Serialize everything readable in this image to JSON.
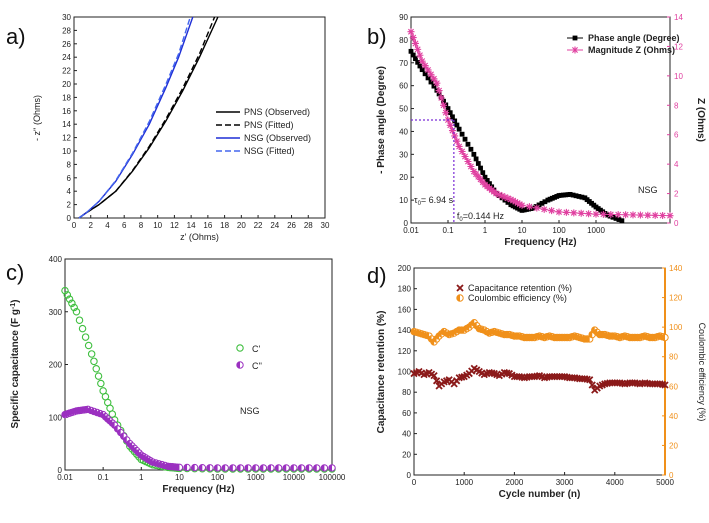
{
  "panels": {
    "a": "a)",
    "b": "b)",
    "c": "c)",
    "d": "d)"
  },
  "chart_data": [
    {
      "id": "a",
      "type": "line",
      "title": "",
      "xlabel": "z' (Ohms)",
      "ylabel": "- z'' (Ohms)",
      "xlim": [
        0,
        30
      ],
      "ylim": [
        0,
        30
      ],
      "xticks": [
        0,
        2,
        4,
        6,
        8,
        10,
        12,
        14,
        16,
        18,
        20,
        22,
        24,
        26,
        28,
        30
      ],
      "yticks": [
        0,
        2,
        4,
        6,
        8,
        10,
        12,
        14,
        16,
        18,
        20,
        22,
        24,
        26,
        28,
        30
      ],
      "legend_position": "center-right",
      "series": [
        {
          "name": "PNS (Observed)",
          "color": "#000000",
          "style": "solid",
          "x": [
            0.6,
            1.5,
            3,
            5,
            7,
            9,
            11,
            13,
            15,
            17.2
          ],
          "y": [
            0,
            0.8,
            2,
            4,
            7,
            10.5,
            14.5,
            19,
            24,
            30
          ]
        },
        {
          "name": "PNS (Fitted)",
          "color": "#000000",
          "style": "dashed",
          "x": [
            0.6,
            1.5,
            3,
            5,
            7,
            9,
            11,
            13,
            15,
            16.8
          ],
          "y": [
            0,
            0.8,
            2,
            4,
            7.1,
            10.7,
            14.8,
            19.4,
            24.5,
            30
          ]
        },
        {
          "name": "NSG (Observed)",
          "color": "#1f2fd6",
          "style": "solid",
          "x": [
            0.6,
            1.5,
            3,
            5,
            7,
            9,
            11,
            12.5,
            14.2
          ],
          "y": [
            0,
            0.8,
            2.5,
            5.5,
            9.5,
            14,
            19.5,
            24,
            30
          ]
        },
        {
          "name": "NSG (Fitted)",
          "color": "#4466ee",
          "style": "dashed",
          "x": [
            0.6,
            1.5,
            3,
            5,
            7,
            9,
            11,
            12.5,
            13.9
          ],
          "y": [
            0,
            0.8,
            2.5,
            5.6,
            9.7,
            14.4,
            20,
            24.5,
            30
          ]
        }
      ]
    },
    {
      "id": "b",
      "type": "line",
      "title": "",
      "xlabel": "Frequency (Hz)",
      "ylabel": "- Phase angle (Degree)",
      "y2label": "Z (Ohms)",
      "xscale": "log",
      "xlim": [
        0.01,
        100000
      ],
      "ylim": [
        0,
        90
      ],
      "y2lim": [
        0,
        14
      ],
      "xticks": [
        0.01,
        0.1,
        1,
        10,
        100,
        1000
      ],
      "xticklabels": [
        "0.01",
        "0.1",
        "1",
        "10",
        "100",
        "1000"
      ],
      "yticks": [
        0,
        10,
        20,
        30,
        40,
        50,
        60,
        70,
        80,
        90
      ],
      "y2ticks": [
        0,
        2,
        4,
        6,
        8,
        10,
        12,
        14
      ],
      "legend_position": "top-right",
      "annotations": {
        "sample": "NSG",
        "tau_symbol": "τ",
        "tau_sub": "0",
        "tau_value": "= 6.94 s",
        "f_symbol": "f",
        "f_sub": "0",
        "f_value": "=0.144 Hz"
      },
      "series": [
        {
          "name": "Phase angle (Degree)",
          "color": "#000000",
          "marker": "square",
          "axis": "left",
          "x": [
            0.01,
            0.02,
            0.05,
            0.1,
            0.2,
            0.5,
            1,
            2,
            5,
            10,
            20,
            50,
            100,
            200,
            500,
            1000,
            2000,
            5000
          ],
          "y": [
            75,
            67,
            58,
            50,
            41,
            30,
            20,
            13,
            8,
            5.5,
            6.5,
            10,
            12,
            12.5,
            11,
            7,
            3.5,
            1
          ]
        },
        {
          "name": "Magnitude Z (Ohms)",
          "color": "#e040a0",
          "marker": "asterisk",
          "axis": "right",
          "x": [
            0.01,
            0.02,
            0.05,
            0.1,
            0.2,
            0.5,
            1,
            2,
            5,
            10,
            100,
            1000,
            10000,
            100000
          ],
          "y": [
            13,
            11,
            9.5,
            7,
            5.2,
            3.5,
            2.6,
            2.0,
            1.6,
            1.2,
            0.75,
            0.6,
            0.55,
            0.5
          ]
        }
      ]
    },
    {
      "id": "c",
      "type": "scatter",
      "title": "",
      "xlabel": "Frequency (Hz)",
      "ylabel": "Specific capacitance (F g",
      "ylabel_sup": "-1",
      "ylabel_end": ")",
      "xscale": "log",
      "xlim": [
        0.01,
        100000
      ],
      "ylim": [
        0,
        400
      ],
      "xticks": [
        0.01,
        0.1,
        1,
        10,
        100,
        1000,
        10000,
        100000
      ],
      "xticklabels": [
        "0.01",
        "0.1",
        "1",
        "10",
        "100",
        "1000",
        "10000",
        "100000"
      ],
      "yticks": [
        0,
        100,
        200,
        300,
        400
      ],
      "legend_position": "center-right",
      "annotations": {
        "sample": "NSG"
      },
      "series": [
        {
          "name": "C'",
          "color": "#3fbf3f",
          "marker": "circle",
          "x": [
            0.01,
            0.02,
            0.05,
            0.1,
            0.2,
            0.5,
            1,
            2,
            5,
            10,
            100,
            1000,
            10000,
            100000
          ],
          "y": [
            340,
            300,
            220,
            150,
            95,
            45,
            20,
            10,
            5,
            3,
            2,
            2,
            2,
            2
          ]
        },
        {
          "name": "C''",
          "color": "#9b30c0",
          "marker": "circle-half",
          "x": [
            0.01,
            0.02,
            0.04,
            0.1,
            0.2,
            0.5,
            1,
            2,
            5,
            10,
            100,
            1000,
            10000,
            100000
          ],
          "y": [
            105,
            112,
            115,
            105,
            85,
            50,
            28,
            15,
            7,
            5,
            4,
            4,
            4,
            4
          ]
        }
      ]
    },
    {
      "id": "d",
      "type": "scatter",
      "title": "",
      "xlabel": "Cycle number (n)",
      "ylabel": "Capacitance retention (%)",
      "y2label": "Coulombic efficiency (%)",
      "xlim": [
        0,
        5000
      ],
      "ylim": [
        0,
        200
      ],
      "y2lim": [
        0,
        140
      ],
      "xticks": [
        0,
        1000,
        2000,
        3000,
        4000,
        5000
      ],
      "yticks": [
        0,
        20,
        40,
        60,
        80,
        100,
        120,
        140,
        160,
        180,
        200
      ],
      "y2ticks": [
        0,
        20,
        40,
        60,
        80,
        100,
        120,
        140
      ],
      "legend_position": "top-left",
      "series": [
        {
          "name": "Capacitance retention (%)",
          "color": "#8b1a1a",
          "marker": "x",
          "axis": "left",
          "x": [
            0,
            100,
            200,
            300,
            400,
            500,
            600,
            700,
            800,
            900,
            1000,
            1100,
            1200,
            1300,
            1400,
            1500,
            1600,
            1700,
            1800,
            1900,
            2000,
            2100,
            2200,
            2300,
            2400,
            2500,
            2600,
            2700,
            2800,
            2900,
            3000,
            3100,
            3200,
            3300,
            3400,
            3500,
            3600,
            3700,
            3800,
            3900,
            4000,
            4100,
            4200,
            4300,
            4400,
            4500,
            4600,
            4700,
            4800,
            4900,
            5000
          ],
          "y": [
            98,
            100,
            97,
            99,
            96,
            86,
            90,
            92,
            88,
            94,
            95,
            98,
            103,
            100,
            97,
            99,
            98,
            96,
            99,
            98,
            95,
            95,
            94,
            95,
            95,
            96,
            94,
            95,
            95,
            95,
            95,
            94,
            94,
            93,
            93,
            92,
            82,
            86,
            88,
            89,
            89,
            89,
            88,
            89,
            89,
            88,
            89,
            88,
            88,
            88,
            87
          ]
        },
        {
          "name": "Coulombic efficiency (%)",
          "color": "#f0901a",
          "marker": "circle-half",
          "axis": "right",
          "x": [
            0,
            100,
            200,
            300,
            400,
            500,
            600,
            700,
            800,
            900,
            1000,
            1100,
            1200,
            1300,
            1400,
            1500,
            1600,
            1700,
            1800,
            1900,
            2000,
            2100,
            2200,
            2300,
            2400,
            2500,
            2600,
            2700,
            2800,
            2900,
            3000,
            3100,
            3200,
            3300,
            3400,
            3500,
            3600,
            3700,
            3800,
            3900,
            4000,
            4100,
            4200,
            4300,
            4400,
            4500,
            4600,
            4700,
            4800,
            4900,
            5000
          ],
          "y": [
            97,
            96,
            95,
            94,
            90,
            94,
            97,
            95,
            96,
            98,
            98,
            100,
            103,
            99,
            98,
            96,
            97,
            96,
            95,
            95,
            94,
            94,
            93,
            93,
            93,
            94,
            93,
            94,
            93,
            93,
            93,
            93,
            94,
            93,
            92,
            92,
            98,
            95,
            95,
            94,
            94,
            93,
            94,
            93,
            93,
            93,
            94,
            93,
            93,
            94,
            93
          ]
        }
      ]
    }
  ]
}
